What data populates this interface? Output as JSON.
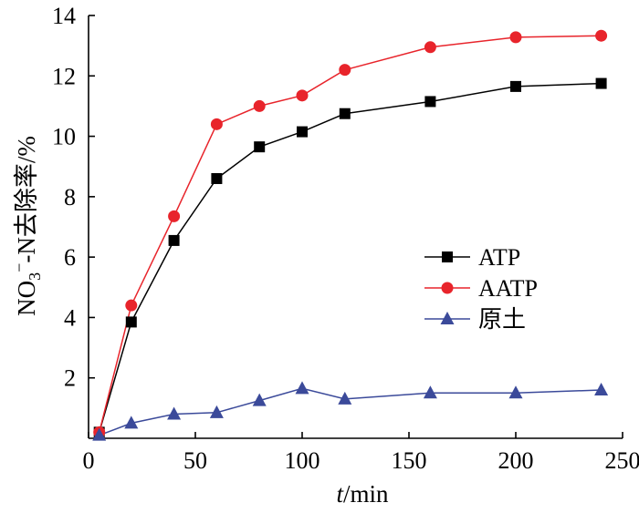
{
  "chart_data": {
    "type": "line",
    "title": "",
    "xlabel_italic": "t",
    "xlabel_rest": "/min",
    "ylabel_pre": "NO",
    "ylabel_sub": "3",
    "ylabel_sup": "−",
    "ylabel_post": "-N去除率/%",
    "xlim": [
      0,
      250
    ],
    "ylim": [
      0,
      14
    ],
    "x_ticks": [
      0,
      50,
      100,
      150,
      200,
      250
    ],
    "y_ticks": [
      2,
      4,
      6,
      8,
      10,
      12,
      14
    ],
    "grid": false,
    "legend_position": "center-right",
    "series": [
      {
        "name": "ATP",
        "color": "#000000",
        "marker": "square",
        "x": [
          5,
          20,
          40,
          60,
          80,
          100,
          120,
          160,
          200,
          240
        ],
        "y": [
          0.2,
          3.85,
          6.55,
          8.6,
          9.65,
          10.15,
          10.75,
          11.15,
          11.65,
          11.75
        ]
      },
      {
        "name": "AATP",
        "color": "#e8242b",
        "marker": "circle",
        "x": [
          5,
          20,
          40,
          60,
          80,
          100,
          120,
          160,
          200,
          240
        ],
        "y": [
          0.2,
          4.4,
          7.35,
          10.4,
          11.0,
          11.35,
          12.2,
          12.95,
          13.28,
          13.33
        ]
      },
      {
        "name": "原土",
        "color": "#3b4a9a",
        "marker": "triangle",
        "x": [
          5,
          20,
          40,
          60,
          80,
          100,
          120,
          160,
          200,
          240
        ],
        "y": [
          0.1,
          0.5,
          0.8,
          0.85,
          1.25,
          1.65,
          1.3,
          1.5,
          1.5,
          1.6
        ]
      }
    ]
  }
}
